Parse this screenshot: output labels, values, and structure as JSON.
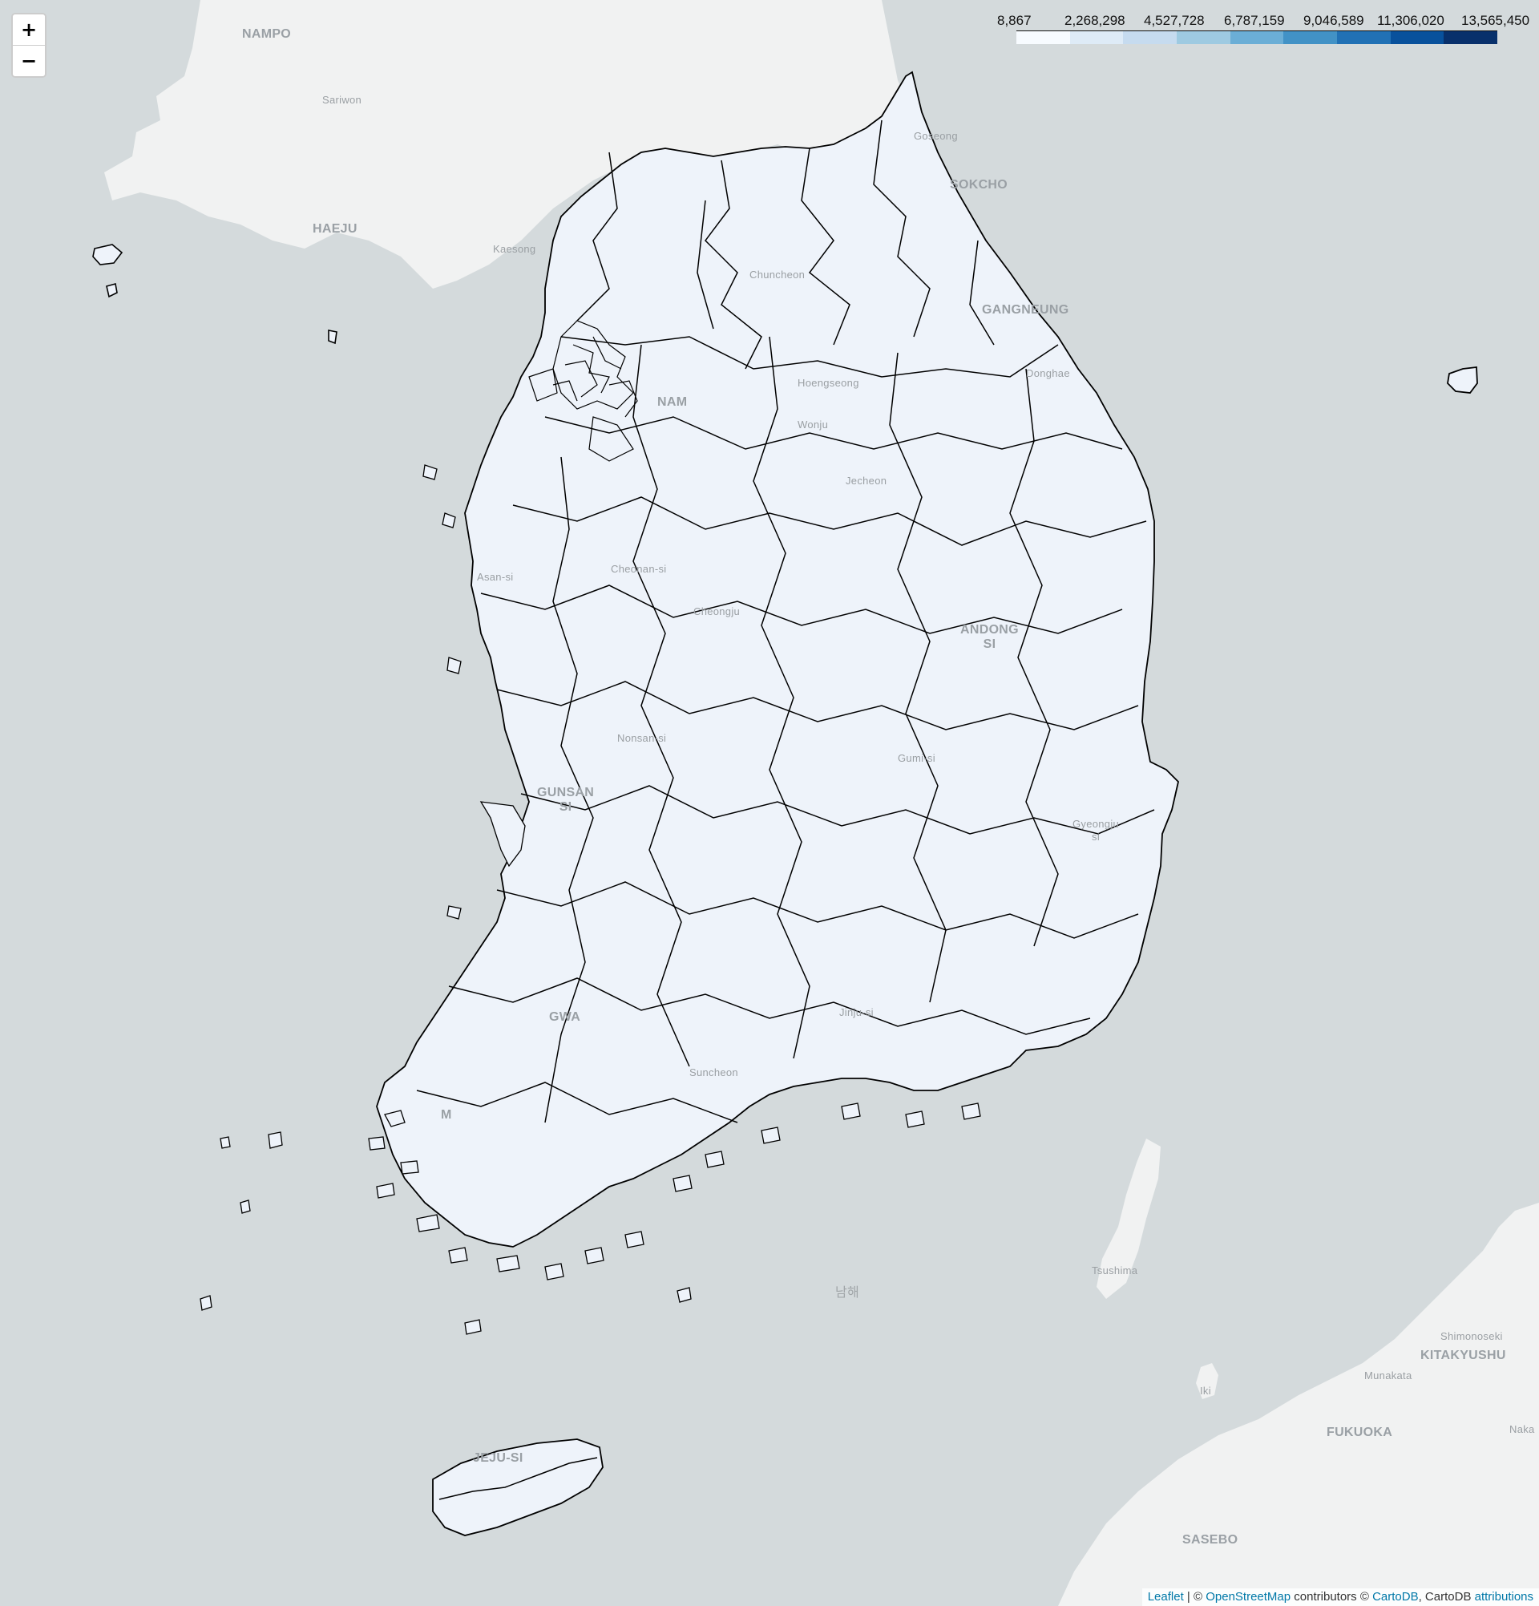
{
  "map": {
    "controls": {
      "zoom_in_label": "+",
      "zoom_out_label": "−"
    },
    "legend": {
      "ticks": [
        "8,867",
        "2,268,298",
        "4,527,728",
        "6,787,159",
        "9,046,589",
        "11,306,020",
        "13,565,450"
      ],
      "colors": [
        "#f7fbff",
        "#deebf7",
        "#c6dbef",
        "#9ecae1",
        "#6baed6",
        "#4292c6",
        "#2171b5",
        "#08519c",
        "#08306b"
      ]
    },
    "region_fill": "#eef3fa",
    "region_stroke": "#000000",
    "labels": {
      "nampo": "NAMPO",
      "sariwon": "Sariwon",
      "haeju": "HAEJU",
      "kaesong": "Kaesong",
      "goseong": "Goseong",
      "sokcho": "SOKCHO",
      "chuncheon": "Chuncheon",
      "gangneung": "GANGNEUNG",
      "donghae": "Donghae",
      "hongseong": "Hoengseong",
      "wonju": "Wonju",
      "seongnam": "NAM",
      "jecheon": "Jecheon",
      "cheonan": "Cheonan-si",
      "asan": "Asan-si",
      "cheongju": "Cheongju",
      "andong": "ANDONG\nSI",
      "nonsan": "Nonsan-si",
      "gunsan": "GUNSAN\nSI",
      "gumi": "Gumi-si",
      "gyeongju": "Gyeongju\nsi",
      "jinju": "Jinju-si",
      "suncheon": "Suncheon",
      "gwangju": "GWA",
      "mokpo": "M",
      "jeju": "JEJU-SI",
      "tsushima": "Tsushima",
      "iki": "Iki",
      "shimonoseki": "Shimonoseki",
      "kitakyushu": "KITAKYUSHU",
      "munakata": "Munakata",
      "fukuoka": "FUKUOKA",
      "sasebo": "SASEBO",
      "naka": "Naka",
      "south_sea": "남해"
    },
    "attribution": {
      "leaflet": "Leaflet",
      "sep1": " | © ",
      "osm": "OpenStreetMap",
      "contributors": " contributors © ",
      "cartodb": "CartoDB",
      "sep2": ", CartoDB ",
      "attributions": "attributions"
    }
  }
}
